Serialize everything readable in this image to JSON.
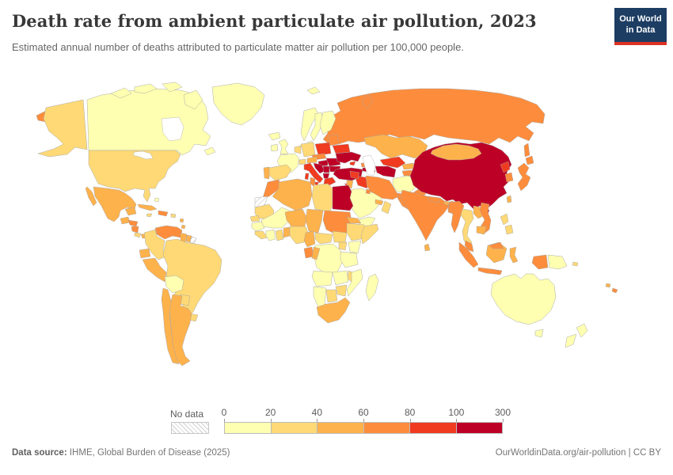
{
  "header": {
    "title": "Death rate from ambient particulate air pollution, 2023",
    "subtitle": "Estimated annual number of deaths attributed to particulate matter air pollution per 100,000 people."
  },
  "logo": {
    "line1": "Our World",
    "line2": "in Data",
    "bg_color": "#1d3d63",
    "accent_color": "#dc3224"
  },
  "legend": {
    "no_data_label": "No data",
    "ticks": [
      "0",
      "20",
      "40",
      "60",
      "80",
      "100",
      "300"
    ],
    "bin_colors": [
      "#FFFFB2",
      "#FED976",
      "#FEB24C",
      "#FD8D3C",
      "#F03B20",
      "#BD0026"
    ]
  },
  "footer": {
    "source_label": "Data source:",
    "source_text": " IHME, Global Burden of Disease (2025)",
    "right_text": "OurWorldinData.org/air-pollution | CC BY"
  },
  "chart_data": {
    "type": "heatmap",
    "subtype": "choropleth-world-map",
    "title": "Death rate from ambient particulate air pollution, 2023",
    "unit": "deaths per 100,000 people",
    "year": 2023,
    "legend_position": "bottom",
    "bins": [
      "0-20",
      "20-40",
      "40-60",
      "60-80",
      "80-100",
      "100-300"
    ],
    "palette": {
      "0-20": "#FFFFB2",
      "20-40": "#FED976",
      "40-60": "#FEB24C",
      "60-80": "#FD8D3C",
      "80-100": "#F03B20",
      "100-300": "#BD0026"
    },
    "regions": {
      "canada": "0-20",
      "greenland": "0-20",
      "arctic-islands": "0-20",
      "newfoundland": "0-20",
      "usa": "20-40",
      "alaska": "20-40",
      "chukotka-fragment": "60-80",
      "mexico": "40-60",
      "guatemala": "40-60",
      "honduras": "60-80",
      "nicaragua": "60-80",
      "costa-rica": "20-40",
      "panama": "40-60",
      "cuba": "40-60",
      "jamaica": "20-40",
      "hispaniola": "60-80",
      "puerto-rico": "20-40",
      "bahamas": "0-20",
      "lesser-antilles": "40-60",
      "venezuela": "60-80",
      "guyana": "40-60",
      "suriname": "40-60",
      "french-guiana": "no-data",
      "colombia": "20-40",
      "ecuador": "40-60",
      "peru": "40-60",
      "brazil": "20-40",
      "bolivia": "0-20",
      "paraguay": "20-40",
      "uruguay": "20-40",
      "chile": "40-60",
      "argentina": "40-60",
      "iceland": "0-20",
      "ireland": "0-20",
      "united-kingdom": "0-20",
      "norway": "0-20",
      "sweden": "0-20",
      "finland": "0-20",
      "denmark": "0-20",
      "svalbard": "0-20",
      "baltic-states": "60-80",
      "belarus": "80-100",
      "poland": "80-100",
      "germany": "20-40",
      "benelux": "20-40",
      "france": "0-20",
      "switzerland": "20-40",
      "austria": "40-60",
      "czechia-slovakia": "60-80",
      "hungary": "100-300",
      "spain": "20-40",
      "portugal": "40-60",
      "italy": "80-100",
      "croatia-bosnia": "100-300",
      "serbia": "100-300",
      "albania-macedonia": "100-300",
      "greece": "80-100",
      "romania": "100-300",
      "bulgaria": "100-300",
      "moldova": "100-300",
      "ukraine": "100-300",
      "crimea": "80-100",
      "turkey": "100-300",
      "cyprus": "80-100",
      "georgia": "60-80",
      "armenia": "100-300",
      "azerbaijan": "80-100",
      "russia": "60-80",
      "kazakhstan": "40-60",
      "uzbekistan": "80-100",
      "turkmenistan": "100-300",
      "kyrgyzstan": "40-60",
      "tajikistan": "60-80",
      "afghanistan": "0-20",
      "pakistan": "60-80",
      "india": "60-80",
      "nepal": "60-80",
      "bhutan": "40-60",
      "bangladesh": "60-80",
      "sri-lanka": "40-60",
      "iran": "60-80",
      "iraq": "80-100",
      "syria": "80-100",
      "jordan-israel": "40-60",
      "saudi-arabia": "0-20",
      "kuwait": "60-80",
      "qatar-uae": "40-60",
      "oman": "20-40",
      "yemen": "0-20",
      "morocco": "60-80",
      "western-sahara": "no-data",
      "algeria": "40-60",
      "tunisia": "60-80",
      "libya": "20-40",
      "egypt": "100-300",
      "mauritania": "20-40",
      "mali": "0-20",
      "niger": "40-60",
      "chad": "40-60",
      "sudan": "60-80",
      "senegal": "20-40",
      "guinea": "0-20",
      "sierra-leone-liberia": "20-40",
      "ivory-coast": "0-20",
      "ghana": "20-40",
      "togo-benin": "40-60",
      "nigeria": "20-40",
      "cameroon": "40-60",
      "central-african-republic": "20-40",
      "south-sudan": "20-40",
      "ethiopia": "20-40",
      "eritrea-djibouti": "40-60",
      "somalia": "20-40",
      "kenya": "0-20",
      "uganda": "20-40",
      "dr-congo": "0-20",
      "gabon": "60-80",
      "congo": "40-60",
      "tanzania": "0-20",
      "angola": "0-20",
      "zambia": "0-20",
      "malawi": "20-40",
      "mozambique": "0-20",
      "zimbabwe": "20-40",
      "botswana": "20-40",
      "namibia": "0-20",
      "south-africa": "40-60",
      "madagascar": "0-20",
      "china": "100-300",
      "mongolia": "40-60",
      "taiwan": "40-60",
      "hainan": "100-300",
      "north-korea": "80-100",
      "south-korea": "60-80",
      "japan": "60-80",
      "myanmar": "60-80",
      "thailand": "20-40",
      "laos": "40-60",
      "vietnam": "60-80",
      "cambodia": "40-60",
      "malaysia": "60-80",
      "indonesia": "60-80",
      "indonesia-borneo": "40-60",
      "sulawesi": "40-60",
      "west-papua": "60-80",
      "papua-new-guinea": "0-20",
      "philippines": "20-40",
      "solomon-islands": "20-40",
      "fiji": "40-60",
      "new-caledonia": "60-80",
      "australia": "0-20",
      "tasmania": "0-20",
      "new-zealand": "0-20"
    }
  }
}
